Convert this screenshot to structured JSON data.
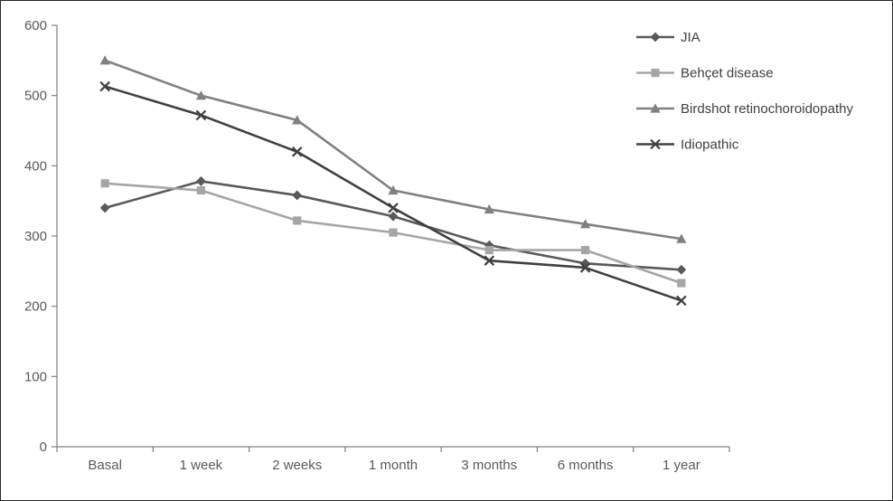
{
  "chart_data": {
    "type": "line",
    "title": "",
    "xlabel": "",
    "ylabel": "",
    "categories": [
      "Basal",
      "1 week",
      "2 weeks",
      "1 month",
      "3 months",
      "6 months",
      "1 year"
    ],
    "series": [
      {
        "name": "JIA",
        "marker": "diamond",
        "color": "#595959",
        "values": [
          340,
          378,
          358,
          328,
          287,
          261,
          252
        ]
      },
      {
        "name": "Behçet disease",
        "marker": "square",
        "color": "#a6a6a6",
        "values": [
          375,
          365,
          322,
          305,
          280,
          280,
          233
        ]
      },
      {
        "name": "Birdshot retinochoroidopathy",
        "marker": "triangle",
        "color": "#808080",
        "values": [
          550,
          500,
          465,
          365,
          338,
          317,
          296
        ]
      },
      {
        "name": "Idiopathic",
        "marker": "x",
        "color": "#404040",
        "values": [
          513,
          472,
          420,
          340,
          265,
          255,
          208
        ]
      }
    ],
    "ylim": [
      0,
      600
    ],
    "ytick_interval": 100,
    "grid": false,
    "legend_position": "top-right",
    "axis_color": "#808080",
    "tick_label_color": "#595959",
    "legend_label_color": "#404040"
  }
}
